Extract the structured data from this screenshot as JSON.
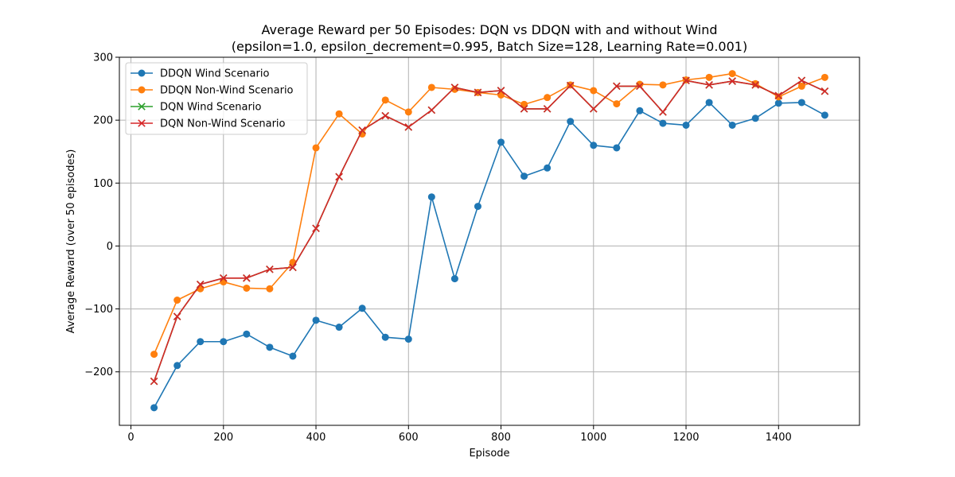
{
  "chart_data": {
    "type": "line",
    "title": "Average Reward per 50 Episodes: DQN vs DDQN with and without Wind",
    "subtitle": "(epsilon=1.0, epsilon_decrement=0.995, Batch Size=128, Learning Rate=0.001)",
    "xlabel": "Episode",
    "ylabel": "Average Reward (over 50 episodes)",
    "xlim": [
      -25,
      1575
    ],
    "ylim": [
      -285,
      300
    ],
    "x_ticks": [
      0,
      200,
      400,
      600,
      800,
      1000,
      1200,
      1400
    ],
    "y_ticks": [
      -200,
      -100,
      0,
      100,
      200,
      300
    ],
    "grid": true,
    "legend_position": "top-left",
    "x": [
      50,
      100,
      150,
      200,
      250,
      300,
      350,
      400,
      450,
      500,
      550,
      600,
      650,
      700,
      750,
      800,
      850,
      900,
      950,
      1000,
      1050,
      1100,
      1150,
      1200,
      1250,
      1300,
      1350,
      1400,
      1450,
      1500
    ],
    "series": [
      {
        "name": "DDQN Wind Scenario",
        "color": "#1f77b4",
        "marker": "circle",
        "values": [
          -257,
          -190,
          -152,
          -152,
          -140,
          -161,
          -175,
          -118,
          -129,
          -99,
          -145,
          -148,
          78,
          -52,
          63,
          165,
          111,
          124,
          198,
          160,
          156,
          215,
          195,
          192,
          228,
          192,
          203,
          227,
          228,
          208
        ]
      },
      {
        "name": "DDQN Non-Wind Scenario",
        "color": "#ff7f0e",
        "marker": "circle",
        "values": [
          -172,
          -86,
          -68,
          -57,
          -67,
          -68,
          -26,
          156,
          210,
          178,
          232,
          213,
          252,
          249,
          244,
          240,
          225,
          236,
          256,
          247,
          226,
          257,
          256,
          264,
          268,
          274,
          258,
          237,
          254,
          268
        ]
      },
      {
        "name": "DQN Wind Scenario",
        "color": "#2ca02c",
        "marker": "x",
        "values": [
          -215,
          -112,
          -61,
          -51,
          -51,
          -37,
          -34,
          28,
          110,
          184,
          207,
          189,
          216,
          252,
          244,
          247,
          218,
          218,
          255,
          218,
          254,
          254,
          213,
          263,
          256,
          262,
          256,
          239,
          263,
          246
        ]
      },
      {
        "name": "DQN Non-Wind Scenario",
        "color": "#d62728",
        "marker": "x",
        "values": [
          -215,
          -112,
          -61,
          -51,
          -51,
          -37,
          -34,
          28,
          110,
          184,
          207,
          189,
          216,
          252,
          244,
          247,
          218,
          218,
          255,
          218,
          254,
          254,
          213,
          263,
          256,
          262,
          256,
          239,
          263,
          246
        ]
      }
    ]
  }
}
